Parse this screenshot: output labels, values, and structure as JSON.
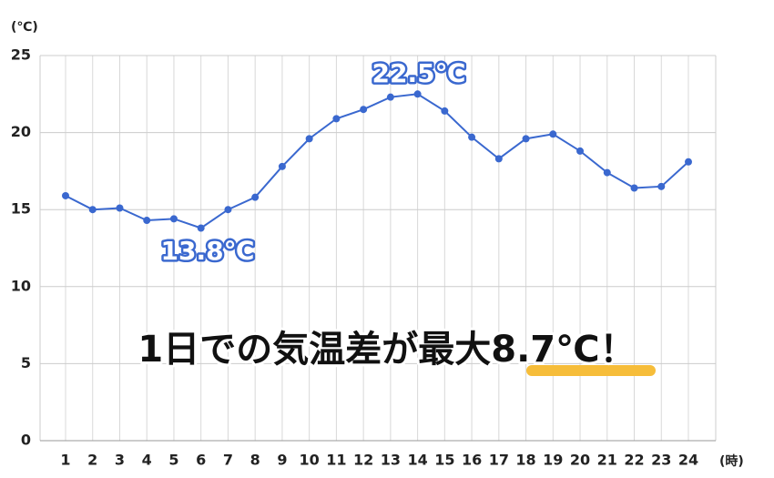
{
  "chart_data": {
    "type": "line",
    "y_unit": "(℃)",
    "x_unit": "(時)",
    "headline": "1日での気温差が最大8.7℃！",
    "annotations": [
      "22.5℃",
      "13.8℃"
    ],
    "categories": [
      "1",
      "2",
      "3",
      "4",
      "5",
      "6",
      "7",
      "8",
      "9",
      "10",
      "11",
      "12",
      "13",
      "14",
      "15",
      "16",
      "17",
      "18",
      "19",
      "20",
      "21",
      "22",
      "23",
      "24"
    ],
    "values": [
      15.9,
      15.0,
      15.1,
      14.3,
      14.4,
      13.8,
      15.0,
      15.8,
      17.8,
      19.6,
      20.9,
      21.5,
      22.3,
      22.5,
      21.4,
      19.7,
      18.3,
      19.6,
      19.9,
      18.8,
      17.4,
      16.4,
      16.5,
      18.1
    ],
    "color": "#3a68cf",
    "ylim": [
      0,
      25
    ],
    "yticks": [
      0,
      5,
      10,
      15,
      20,
      25
    ],
    "grid": true
  }
}
